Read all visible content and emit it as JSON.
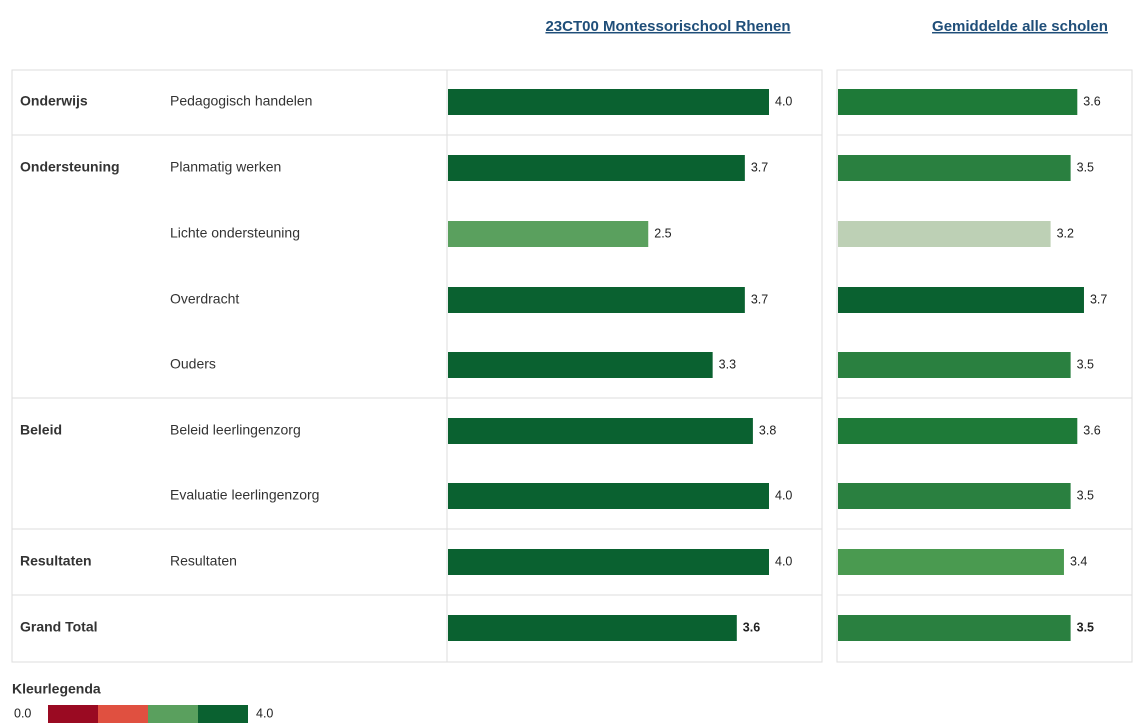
{
  "rows": [
    {
      "group": "Onderwijs",
      "label": "Pedagogisch handelen"
    },
    {
      "group": "Ondersteuning",
      "label": "Planmatig werken"
    },
    {
      "group": null,
      "label": "Lichte ondersteuning"
    },
    {
      "group": null,
      "label": "Overdracht"
    },
    {
      "group": null,
      "label": "Ouders"
    },
    {
      "group": "Beleid",
      "label": "Beleid leerlingenzorg"
    },
    {
      "group": null,
      "label": "Evaluatie leerlingenzorg"
    },
    {
      "group": "Resultaten",
      "label": "Resultaten"
    },
    {
      "group": "Grand Total",
      "label": null
    }
  ],
  "chart_data": [
    {
      "type": "bar",
      "title": "23CT00 Montessorischool Rhenen",
      "values": [
        4.0,
        3.7,
        2.5,
        3.7,
        3.3,
        3.8,
        4.0,
        4.0,
        3.6
      ],
      "value_labels": [
        "4.0",
        "3.7",
        "2.5",
        "3.7",
        "3.3",
        "3.8",
        "4.0",
        "4.0",
        "3.6"
      ],
      "colors": [
        "#0a6130",
        "#0a6130",
        "#5aa05e",
        "#0a6130",
        "#0a6130",
        "#0a6130",
        "#0a6130",
        "#0a6130",
        "#0a6130"
      ]
    },
    {
      "type": "bar",
      "title": "Gemiddelde alle scholen",
      "values": [
        3.6,
        3.5,
        3.2,
        3.7,
        3.5,
        3.6,
        3.5,
        3.4,
        3.5
      ],
      "value_labels": [
        "3.6",
        "3.5",
        "3.2",
        "3.7",
        "3.5",
        "3.6",
        "3.5",
        "3.4",
        "3.5"
      ],
      "colors": [
        "#1e7a38",
        "#2a8040",
        "#bdd0b5",
        "#0a6130",
        "#2a8040",
        "#1e7a38",
        "#2a8040",
        "#4a9a50",
        "#2a8040"
      ]
    }
  ],
  "legend": {
    "title": "Kleurlegenda",
    "min": {
      "value": 0,
      "label": "0.0"
    },
    "max": {
      "value": 4,
      "label": "4.0"
    },
    "colors": [
      "#9a0a22",
      "#e05040",
      "#5aa05e",
      "#0a6130"
    ]
  }
}
